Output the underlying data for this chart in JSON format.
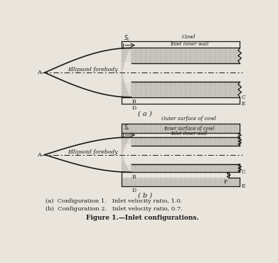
{
  "bg_color": "#e9e5dd",
  "line_color": "#1a1a1a",
  "fill_color": "#cdc9c2",
  "hatch_color": "#aaa8a0",
  "title": "Figure 1.—Inlet configurations.",
  "caption_a": "(a)  Configuration 1.   Inlet velocity ratio, 1.0.",
  "caption_b": "(b)  Configuration 2.   Inlet velocity ratio, 0.7.",
  "sub_a": "( a )",
  "sub_b": "( b )"
}
